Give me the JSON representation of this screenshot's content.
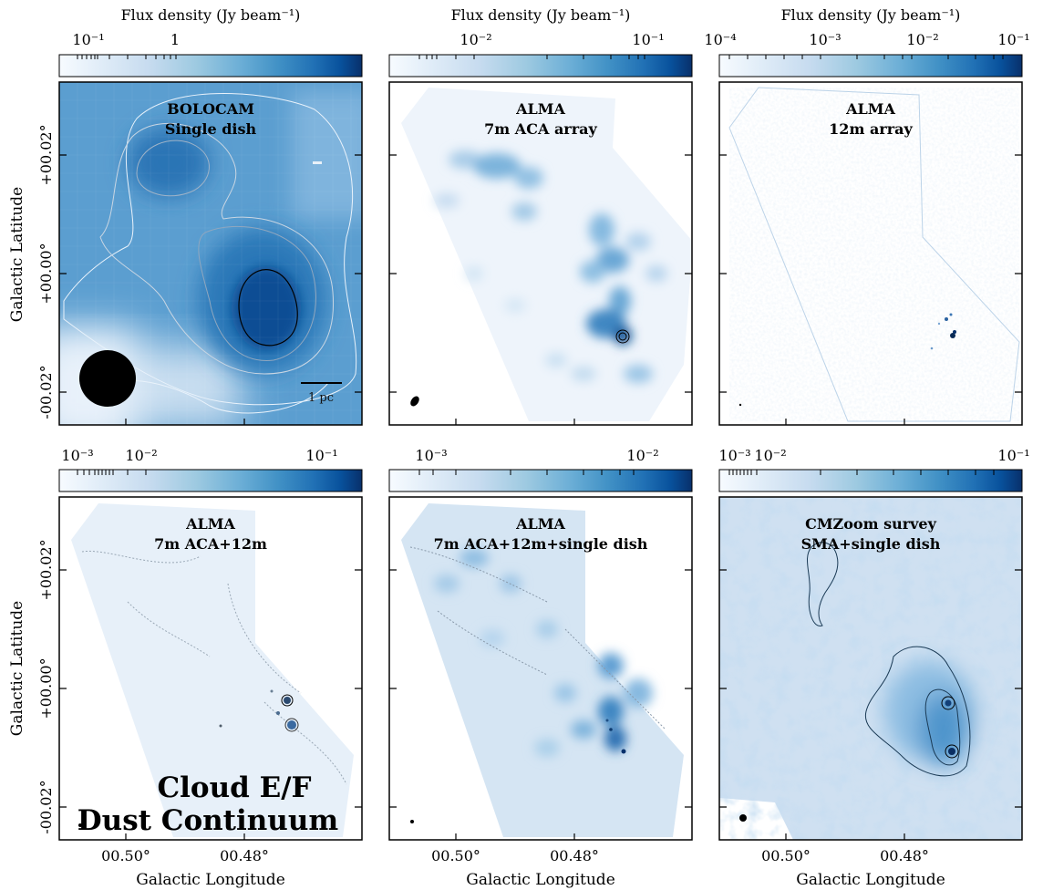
{
  "figure": {
    "ylabel": "Galactic Latitude",
    "xlabel": "Galactic Longitude",
    "colorbar_label": "Flux density (Jy beam⁻¹)",
    "big_text_line1": "Cloud E/F",
    "big_text_line2": "Dust Continuum",
    "scalebar_label": "1 pc",
    "y_tick_labels": [
      "+00.02°",
      "+00.00°",
      "-00.02°"
    ],
    "x_tick_labels": [
      "00.50°",
      "00.48°"
    ],
    "colormap": [
      "#f7fbff",
      "#deebf7",
      "#c6dbef",
      "#9ecae1",
      "#6baed6",
      "#4292c6",
      "#2171b5",
      "#08519c",
      "#08306b"
    ]
  },
  "chart_data": [
    {
      "type": "heatmap",
      "title_line1": "BOLOCAM",
      "title_line2": "Single dish",
      "colorbar_label": "Flux density (Jy beam⁻¹)",
      "colorbar_ticks": [
        "10⁻¹",
        "1"
      ],
      "colorbar_scale": "log",
      "xlabel": "",
      "ylabel": "Galactic Latitude",
      "x_tick_labels": [],
      "y_tick_labels": [
        "+00.02°",
        "+00.00°",
        "-00.02°"
      ],
      "xlim": [
        0.516,
        0.464
      ],
      "ylim": [
        -0.025,
        0.03
      ],
      "peaks_l_b": [
        [
          0.486,
          -0.006
        ],
        [
          0.505,
          0.019
        ]
      ],
      "contours": "white and grey levels; black contour around brightest peak",
      "has_scalebar": true
    },
    {
      "type": "heatmap",
      "title_line1": "ALMA",
      "title_line2": "7m ACA array",
      "colorbar_label": "Flux density (Jy beam⁻¹)",
      "colorbar_ticks": [
        "10⁻²",
        "10⁻¹"
      ],
      "colorbar_scale": "log",
      "xlabel": "",
      "ylabel": "",
      "x_tick_labels": [],
      "y_tick_labels": [],
      "xlim": [
        0.516,
        0.464
      ],
      "ylim": [
        -0.025,
        0.03
      ],
      "peaks_l_b": [
        [
          0.4805,
          -0.0095
        ],
        [
          0.483,
          -0.003
        ],
        [
          0.497,
          0.012
        ]
      ],
      "contours": "black contours at brightest peak"
    },
    {
      "type": "heatmap",
      "title_line1": "ALMA",
      "title_line2": "12m array",
      "colorbar_label": "Flux density (Jy beam⁻¹)",
      "colorbar_ticks": [
        "10⁻⁴",
        "10⁻³",
        "10⁻²",
        "10⁻¹"
      ],
      "colorbar_scale": "log",
      "xlabel": "",
      "ylabel": "",
      "x_tick_labels": [],
      "y_tick_labels": [],
      "xlim": [
        0.516,
        0.464
      ],
      "ylim": [
        -0.025,
        0.03
      ],
      "peaks_l_b": [
        [
          0.4785,
          -0.0095
        ],
        [
          0.4795,
          -0.007
        ]
      ],
      "contours": "none"
    },
    {
      "type": "heatmap",
      "title_line1": "ALMA",
      "title_line2": "7m ACA+12m",
      "colorbar_label": "",
      "colorbar_ticks": [
        "10⁻³",
        "10⁻²",
        "10⁻¹"
      ],
      "colorbar_scale": "log",
      "xlabel": "Galactic Longitude",
      "ylabel": "Galactic Latitude",
      "x_tick_labels": [
        "00.50°",
        "00.48°"
      ],
      "y_tick_labels": [
        "+00.02°",
        "+00.00°",
        "-00.02°"
      ],
      "xlim": [
        0.516,
        0.464
      ],
      "ylim": [
        -0.025,
        0.03
      ],
      "peaks_l_b": [
        [
          0.4795,
          -0.0085
        ],
        [
          0.479,
          -0.0125
        ]
      ],
      "contours": "grey contours; black contours at peaks"
    },
    {
      "type": "heatmap",
      "title_line1": "ALMA",
      "title_line2": "7m ACA+12m+single dish",
      "colorbar_label": "",
      "colorbar_ticks": [
        "10⁻³",
        "10⁻²"
      ],
      "colorbar_scale": "log",
      "xlabel": "Galactic Longitude",
      "ylabel": "",
      "x_tick_labels": [
        "00.50°",
        "00.48°"
      ],
      "y_tick_labels": [],
      "xlim": [
        0.516,
        0.464
      ],
      "ylim": [
        -0.025,
        0.03
      ],
      "peaks_l_b": [
        [
          0.4805,
          -0.0105
        ],
        [
          0.482,
          -0.002
        ]
      ],
      "contours": "grey contours"
    },
    {
      "type": "heatmap",
      "title_line1": "CMZoom survey",
      "title_line2": "SMA+single dish",
      "colorbar_label": "",
      "colorbar_ticks": [
        "10⁻³",
        "10⁻²",
        "10⁻¹"
      ],
      "colorbar_scale": "log",
      "xlabel": "Galactic Longitude",
      "ylabel": "",
      "x_tick_labels": [
        "00.50°",
        "00.48°"
      ],
      "y_tick_labels": [],
      "xlim": [
        0.516,
        0.464
      ],
      "ylim": [
        -0.025,
        0.03
      ],
      "peaks_l_b": [
        [
          0.4785,
          -0.0095
        ],
        [
          0.4775,
          -0.0065
        ]
      ],
      "contours": "dark grey contours around southern clump"
    }
  ]
}
